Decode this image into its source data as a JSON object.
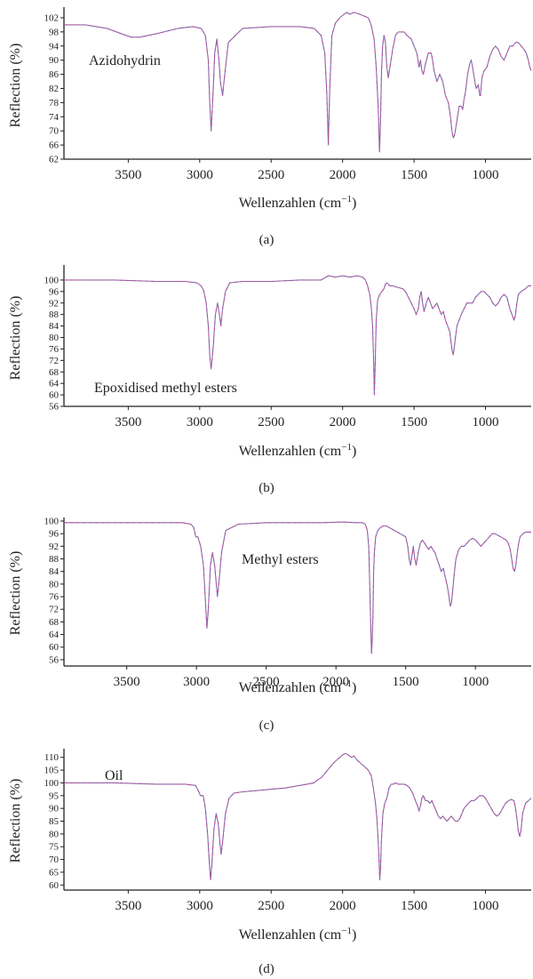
{
  "chart_data": [
    {
      "type": "line",
      "panel_label": "(a)",
      "sample": "Azidohydrin",
      "xlabel": "Wellenzahlen (cm",
      "xlabel_sup": "−1",
      "xlabel_close": ")",
      "ylabel": "Reflection (%)",
      "x_reversed": true,
      "xlim": [
        3950,
        680
      ],
      "ylim": [
        62,
        104
      ],
      "xticks": [
        3500,
        3000,
        2500,
        2000,
        1500,
        1000
      ],
      "yticks": [
        62,
        66,
        70,
        74,
        78,
        82,
        86,
        90,
        94,
        98,
        102
      ],
      "series": [
        {
          "x": [
            3950,
            3800,
            3650,
            3550,
            3480,
            3420,
            3300,
            3150,
            3050,
            2990,
            2960,
            2940,
            2930,
            2920,
            2905,
            2895,
            2880,
            2865,
            2855,
            2840,
            2825,
            2800,
            2700,
            2500,
            2300,
            2200,
            2150,
            2125,
            2110,
            2100,
            2090,
            2075,
            2050,
            2020,
            1990,
            1970,
            1950,
            1920,
            1880,
            1850,
            1820,
            1800,
            1780,
            1765,
            1750,
            1742,
            1735,
            1728,
            1720,
            1710,
            1700,
            1690,
            1680,
            1665,
            1650,
            1630,
            1610,
            1590,
            1570,
            1550,
            1520,
            1500,
            1480,
            1465,
            1455,
            1445,
            1435,
            1420,
            1400,
            1380,
            1370,
            1360,
            1340,
            1320,
            1300,
            1280,
            1260,
            1245,
            1235,
            1225,
            1215,
            1200,
            1185,
            1170,
            1160,
            1150,
            1140,
            1125,
            1110,
            1100,
            1090,
            1075,
            1065,
            1050,
            1040,
            1035,
            1025,
            1010,
            990,
            970,
            950,
            930,
            910,
            890,
            870,
            850,
            830,
            810,
            790,
            770,
            750,
            730,
            715,
            700,
            690,
            680
          ],
          "y": [
            100,
            100,
            99,
            97.5,
            96.5,
            96.5,
            97.5,
            99,
            99.5,
            99,
            97,
            90,
            78,
            70,
            82,
            92,
            96,
            90,
            84,
            80,
            86,
            95,
            99,
            99.5,
            99.5,
            99,
            97,
            92,
            80,
            66,
            82,
            97,
            100.5,
            102,
            103,
            103.5,
            103,
            103.5,
            103,
            102.5,
            102,
            100,
            96,
            88,
            76,
            64,
            72,
            86,
            94,
            97,
            95,
            88,
            85,
            89,
            93,
            97,
            98,
            98,
            98,
            97,
            96,
            94,
            92,
            88,
            90,
            87,
            86,
            89,
            92,
            92,
            90,
            87,
            84,
            86,
            84,
            80,
            78,
            74,
            70,
            68,
            69,
            73,
            77,
            77,
            76,
            79,
            81,
            86,
            89,
            90,
            88,
            84,
            82,
            83,
            80,
            80,
            85,
            87,
            88,
            91,
            93,
            94,
            93,
            91,
            90,
            92,
            94,
            94,
            95,
            95,
            94,
            93,
            92,
            90,
            88,
            87
          ]
        }
      ]
    },
    {
      "type": "line",
      "panel_label": "(b)",
      "sample": "Epoxidised methyl esters",
      "xlabel": "Wellenzahlen (cm",
      "xlabel_sup": "−1",
      "xlabel_close": ")",
      "ylabel": "Reflection (%)",
      "x_reversed": true,
      "xlim": [
        3950,
        680
      ],
      "ylim": [
        56,
        104
      ],
      "xticks": [
        3500,
        3000,
        2500,
        2000,
        1500,
        1000
      ],
      "yticks": [
        56,
        60,
        64,
        68,
        72,
        76,
        80,
        84,
        88,
        92,
        96,
        100
      ],
      "series": [
        {
          "x": [
            3950,
            3600,
            3300,
            3100,
            3020,
            2990,
            2970,
            2955,
            2940,
            2930,
            2920,
            2905,
            2890,
            2875,
            2862,
            2852,
            2840,
            2820,
            2790,
            2700,
            2500,
            2300,
            2150,
            2100,
            2050,
            2000,
            1950,
            1900,
            1860,
            1840,
            1825,
            1810,
            1800,
            1790,
            1783,
            1778,
            1772,
            1765,
            1755,
            1740,
            1725,
            1710,
            1700,
            1690,
            1670,
            1650,
            1620,
            1580,
            1560,
            1540,
            1520,
            1500,
            1485,
            1470,
            1460,
            1450,
            1440,
            1430,
            1415,
            1400,
            1385,
            1370,
            1355,
            1340,
            1325,
            1310,
            1295,
            1280,
            1265,
            1250,
            1240,
            1232,
            1225,
            1215,
            1200,
            1185,
            1170,
            1150,
            1130,
            1110,
            1090,
            1070,
            1050,
            1030,
            1010,
            990,
            970,
            950,
            930,
            910,
            890,
            870,
            850,
            830,
            815,
            800,
            790,
            780,
            770,
            750,
            720,
            700,
            680
          ],
          "y": [
            100,
            100,
            99.5,
            99.5,
            99,
            98,
            96,
            92,
            84,
            74,
            69,
            77,
            88,
            92,
            88,
            84,
            90,
            96,
            99,
            99.5,
            99.5,
            100,
            100,
            101.5,
            101,
            101.5,
            101,
            101.5,
            101,
            100,
            98,
            95,
            91,
            84,
            72,
            60,
            70,
            86,
            93,
            95,
            96,
            97,
            98.5,
            99,
            98,
            98,
            97.5,
            97,
            96,
            94,
            92,
            90,
            88,
            90,
            94,
            96,
            92,
            89,
            92,
            94,
            92,
            90,
            91,
            92,
            90,
            88,
            89,
            86,
            84,
            82,
            78,
            75,
            74,
            78,
            84,
            86,
            88,
            90,
            92,
            92,
            92,
            94,
            95,
            96,
            96,
            95,
            94,
            92,
            91,
            92,
            94,
            95,
            94,
            90,
            88,
            86,
            88,
            92,
            95,
            96,
            97,
            98,
            98
          ]
        }
      ]
    },
    {
      "type": "line",
      "panel_label": "(c)",
      "sample": "Methyl esters",
      "xlabel": "Wellenzahlen (cm",
      "xlabel_sup": "−1",
      "xlabel_close": ")",
      "ylabel": "Reflection (%)",
      "x_reversed": true,
      "xlim": [
        3950,
        600
      ],
      "ylim": [
        54,
        100
      ],
      "xticks": [
        3500,
        3000,
        2500,
        2000,
        1500,
        1000
      ],
      "yticks": [
        56,
        60,
        64,
        68,
        72,
        76,
        80,
        84,
        88,
        92,
        96,
        100
      ],
      "series": [
        {
          "x": [
            3950,
            3600,
            3300,
            3100,
            3040,
            3020,
            3005,
            2990,
            2970,
            2950,
            2935,
            2925,
            2915,
            2900,
            2885,
            2870,
            2858,
            2850,
            2840,
            2820,
            2790,
            2700,
            2500,
            2300,
            2100,
            1950,
            1850,
            1810,
            1790,
            1775,
            1765,
            1758,
            1750,
            1745,
            1740,
            1735,
            1730,
            1725,
            1715,
            1700,
            1680,
            1660,
            1640,
            1620,
            1600,
            1580,
            1560,
            1540,
            1520,
            1500,
            1485,
            1475,
            1465,
            1455,
            1445,
            1435,
            1425,
            1410,
            1395,
            1380,
            1365,
            1350,
            1335,
            1320,
            1305,
            1290,
            1275,
            1260,
            1245,
            1230,
            1215,
            1200,
            1190,
            1180,
            1172,
            1165,
            1155,
            1140,
            1120,
            1100,
            1080,
            1060,
            1040,
            1020,
            1000,
            980,
            960,
            940,
            920,
            900,
            880,
            860,
            840,
            820,
            800,
            780,
            765,
            750,
            740,
            730,
            720,
            710,
            700,
            690,
            680,
            660,
            640,
            620,
            600
          ],
          "y": [
            99.5,
            99.5,
            99.5,
            99.5,
            99,
            98,
            95,
            95,
            92,
            86,
            74,
            66,
            72,
            86,
            90,
            86,
            80,
            76,
            80,
            90,
            97,
            99,
            99.5,
            99.5,
            99.5,
            99.7,
            99.5,
            99.5,
            99,
            97,
            92,
            80,
            66,
            58,
            62,
            70,
            84,
            90,
            95,
            97,
            98,
            98.5,
            98.5,
            98,
            97.5,
            97,
            96.5,
            96,
            95.5,
            95,
            92,
            88,
            86,
            89,
            92,
            88,
            86,
            90,
            93,
            94,
            93,
            92,
            91,
            92,
            91,
            90,
            88,
            86,
            84,
            85,
            82,
            79,
            76,
            73,
            74,
            77,
            82,
            88,
            91,
            92,
            92,
            93,
            94,
            94.5,
            94,
            93,
            92,
            93,
            94,
            95,
            96,
            96,
            95.5,
            95,
            94.5,
            94,
            93,
            91,
            88,
            85,
            84,
            86,
            90,
            93,
            95,
            96,
            96.5,
            96.5,
            96.5
          ]
        }
      ]
    },
    {
      "type": "line",
      "panel_label": "(d)",
      "sample": "Oil",
      "xlabel": "Wellenzahlen (cm",
      "xlabel_sup": "−1",
      "xlabel_close": ")",
      "ylabel": "Reflection (%)",
      "x_reversed": true,
      "xlim": [
        3950,
        680
      ],
      "ylim": [
        58,
        112
      ],
      "xticks": [
        3500,
        3000,
        2500,
        2000,
        1500,
        1000
      ],
      "yticks": [
        60,
        65,
        70,
        75,
        80,
        85,
        90,
        95,
        100,
        105,
        110
      ],
      "series": [
        {
          "x": [
            3950,
            3600,
            3300,
            3100,
            3030,
            3010,
            2995,
            2975,
            2960,
            2945,
            2932,
            2924,
            2915,
            2900,
            2885,
            2870,
            2858,
            2850,
            2840,
            2820,
            2795,
            2760,
            2700,
            2600,
            2500,
            2400,
            2300,
            2250,
            2200,
            2180,
            2150,
            2120,
            2090,
            2060,
            2040,
            2020,
            2000,
            1980,
            1960,
            1940,
            1920,
            1900,
            1880,
            1860,
            1840,
            1820,
            1800,
            1785,
            1770,
            1760,
            1752,
            1745,
            1740,
            1735,
            1728,
            1718,
            1705,
            1690,
            1675,
            1660,
            1645,
            1630,
            1610,
            1590,
            1570,
            1550,
            1530,
            1510,
            1490,
            1475,
            1465,
            1455,
            1445,
            1435,
            1420,
            1405,
            1390,
            1375,
            1360,
            1345,
            1330,
            1315,
            1300,
            1285,
            1270,
            1255,
            1240,
            1225,
            1210,
            1195,
            1180,
            1165,
            1150,
            1135,
            1120,
            1100,
            1080,
            1060,
            1040,
            1020,
            1000,
            980,
            960,
            940,
            920,
            900,
            880,
            860,
            840,
            820,
            800,
            790,
            780,
            770,
            760,
            750,
            740,
            720,
            700,
            680
          ],
          "y": [
            100,
            100,
            99.5,
            99.5,
            99,
            97,
            95,
            95,
            90,
            80,
            68,
            62,
            68,
            82,
            88,
            84,
            76,
            72,
            77,
            88,
            94,
            96,
            96.5,
            97,
            97.5,
            98,
            99,
            99.5,
            100,
            101,
            102,
            104,
            106,
            108,
            109,
            110,
            111,
            111.5,
            111,
            110,
            110.5,
            109,
            108,
            107,
            106,
            105,
            103,
            98,
            92,
            86,
            78,
            70,
            62,
            66,
            78,
            88,
            92,
            94,
            98,
            99.5,
            99.5,
            100,
            99.5,
            99.5,
            99.5,
            99,
            98,
            96,
            93,
            91,
            89,
            91,
            94,
            95,
            93,
            93,
            92,
            93,
            91,
            89,
            87,
            86,
            87,
            86,
            85,
            86,
            87,
            86,
            85,
            85,
            86,
            88,
            90,
            91,
            92,
            93,
            93,
            94,
            95,
            95,
            94,
            92,
            90,
            88,
            87,
            88,
            90,
            92,
            93,
            93.5,
            93,
            90,
            86,
            81,
            79,
            82,
            88,
            92,
            93,
            94
          ]
        }
      ]
    }
  ],
  "colors": {
    "series_primary": "#7d6fb3",
    "series_accent": "#d63a84",
    "axis": "#222222"
  }
}
